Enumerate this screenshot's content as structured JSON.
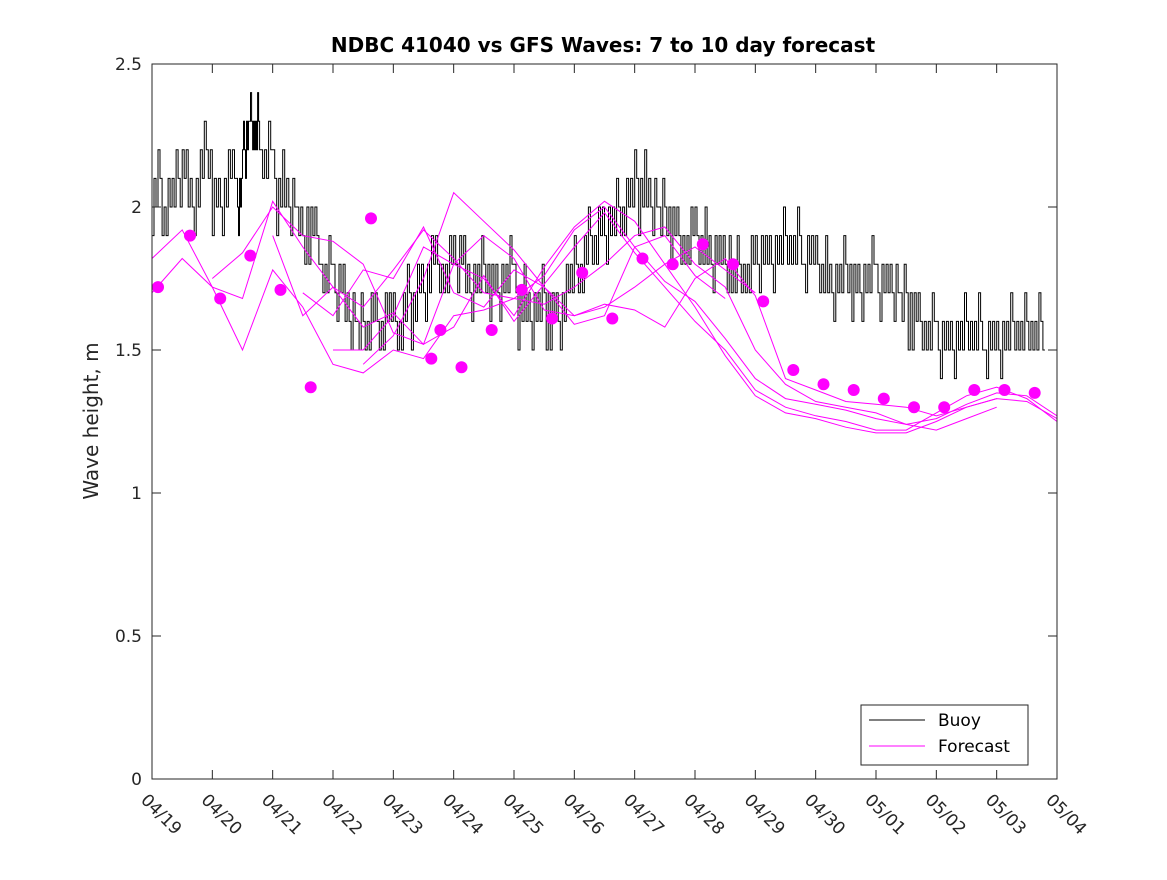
{
  "chart_data": {
    "type": "line",
    "title": "NDBC 41040 vs GFS Waves: 7 to 10 day forecast",
    "xlabel": "",
    "ylabel": "Wave height, m",
    "x_unit": "days",
    "xlim": [
      0,
      15
    ],
    "ylim": [
      0,
      2.5
    ],
    "x_ticks": [
      0,
      1,
      2,
      3,
      4,
      5,
      6,
      7,
      8,
      9,
      10,
      11,
      12,
      13,
      14,
      15
    ],
    "x_tick_labels": [
      "04/19",
      "04/20",
      "04/21",
      "04/22",
      "04/23",
      "04/24",
      "04/25",
      "04/26",
      "04/27",
      "04/28",
      "04/29",
      "04/30",
      "05/01",
      "05/02",
      "05/03",
      "05/04"
    ],
    "y_ticks": [
      0,
      0.5,
      1,
      1.5,
      2,
      2.5
    ],
    "y_tick_labels": [
      "0",
      "0.5",
      "1",
      "1.5",
      "2",
      "2.5"
    ],
    "grid": false,
    "legend": {
      "position": "bottom-right",
      "entries": [
        {
          "label": "Buoy",
          "color": "#000000"
        },
        {
          "label": "Forecast",
          "color": "#ff00ff"
        }
      ]
    },
    "colors": {
      "buoy": "#000000",
      "forecast": "#ff00ff"
    },
    "buoy": {
      "name": "Buoy",
      "x": [
        0.0,
        0.2,
        0.4,
        0.6,
        0.8,
        1.0,
        1.2,
        1.4,
        1.5,
        1.6,
        1.7,
        1.8,
        2.0,
        2.2,
        2.4,
        2.6,
        2.8,
        3.0,
        3.2,
        3.4,
        3.6,
        3.8,
        4.0,
        4.2,
        4.4,
        4.6,
        4.8,
        5.0,
        5.2,
        5.4,
        5.6,
        5.8,
        6.0,
        6.2,
        6.4,
        6.6,
        6.8,
        7.0,
        7.2,
        7.4,
        7.6,
        7.8,
        8.0,
        8.2,
        8.4,
        8.6,
        8.8,
        9.0,
        9.2,
        9.4,
        9.6,
        9.8,
        10.0,
        10.2,
        10.4,
        10.6,
        10.8,
        11.0,
        11.2,
        11.4,
        11.6,
        11.8,
        12.0,
        12.2,
        12.4,
        12.6,
        12.8,
        13.0,
        13.2,
        13.4,
        13.6,
        13.8,
        14.0,
        14.2,
        14.4,
        14.6
      ],
      "y": [
        2.05,
        2.0,
        2.1,
        2.0,
        2.15,
        2.0,
        2.1,
        2.0,
        2.2,
        2.3,
        2.25,
        2.15,
        2.05,
        2.0,
        1.9,
        1.9,
        1.75,
        1.7,
        1.6,
        1.55,
        1.6,
        1.6,
        1.55,
        1.65,
        1.7,
        1.8,
        1.75,
        1.8,
        1.7,
        1.75,
        1.7,
        1.75,
        1.65,
        1.6,
        1.65,
        1.6,
        1.7,
        1.75,
        1.85,
        1.9,
        1.95,
        2.0,
        2.05,
        2.0,
        1.95,
        1.9,
        1.85,
        1.85,
        1.8,
        1.8,
        1.75,
        1.75,
        1.8,
        1.8,
        1.85,
        1.85,
        1.8,
        1.75,
        1.7,
        1.75,
        1.7,
        1.75,
        1.7,
        1.7,
        1.65,
        1.6,
        1.55,
        1.5,
        1.5,
        1.55,
        1.55,
        1.5,
        1.5,
        1.55,
        1.55,
        1.55
      ]
    },
    "forecast_lines": [
      {
        "name": "Forecast",
        "x": [
          0.0,
          0.5,
          1.0,
          1.5,
          2.0,
          2.5,
          3.0,
          3.5,
          4.0,
          4.5,
          5.0,
          5.5,
          6.0,
          6.5,
          7.0,
          7.5,
          8.0,
          8.5,
          9.0,
          9.5,
          10.0,
          10.5,
          11.0,
          11.5,
          12.0,
          12.5,
          13.0,
          13.5,
          14.0,
          14.5,
          15.0
        ],
        "y": [
          1.7,
          1.82,
          1.72,
          1.5,
          1.78,
          1.65,
          1.45,
          1.42,
          1.5,
          1.47,
          1.62,
          1.64,
          1.68,
          1.76,
          1.92,
          2.0,
          1.86,
          1.74,
          1.67,
          1.54,
          1.4,
          1.33,
          1.31,
          1.29,
          1.26,
          1.24,
          1.26,
          1.31,
          1.35,
          1.34,
          1.27
        ]
      },
      {
        "name": "Forecast",
        "x": [
          0.0,
          0.5,
          1.0,
          1.5,
          2.0,
          2.5,
          3.0,
          3.5,
          4.0,
          4.5,
          5.0,
          5.5,
          6.0,
          6.5,
          7.0,
          7.5,
          8.0,
          8.5,
          9.0,
          9.5,
          10.0,
          10.5,
          11.0,
          11.5,
          12.0,
          12.5,
          13.0,
          13.5,
          14.0,
          14.5,
          15.0
        ],
        "y": [
          1.82,
          1.92,
          1.72,
          1.68,
          2.02,
          1.86,
          1.72,
          1.58,
          1.63,
          1.52,
          1.58,
          1.76,
          1.6,
          1.73,
          1.86,
          1.98,
          1.84,
          1.72,
          1.6,
          1.5,
          1.36,
          1.3,
          1.27,
          1.25,
          1.22,
          1.22,
          1.28,
          1.34,
          1.37,
          1.33,
          1.25
        ]
      },
      {
        "name": "Forecast",
        "x": [
          1.0,
          1.5,
          2.0,
          2.5,
          3.0,
          3.5,
          4.0,
          4.5,
          5.0,
          5.5,
          6.0,
          6.5,
          7.0,
          7.5,
          8.0,
          8.5,
          9.0,
          9.5,
          10.0,
          10.5,
          11.0,
          11.5,
          12.0,
          12.5,
          13.0,
          13.5,
          14.0,
          14.5,
          15.0
        ],
        "y": [
          1.75,
          1.84,
          2.0,
          1.9,
          1.88,
          1.8,
          1.56,
          1.52,
          1.8,
          1.75,
          1.62,
          1.79,
          1.93,
          2.02,
          1.95,
          1.8,
          1.65,
          1.48,
          1.34,
          1.28,
          1.26,
          1.23,
          1.21,
          1.21,
          1.25,
          1.3,
          1.33,
          1.32,
          1.26
        ]
      },
      {
        "name": "Forecast",
        "x": [
          2.0,
          2.5,
          3.0,
          3.5,
          4.0,
          4.5,
          5.0,
          5.5,
          6.0,
          6.5,
          7.0,
          7.5,
          8.0,
          8.5,
          9.0,
          9.5,
          10.0,
          10.5,
          11.0,
          11.5,
          12.0,
          12.5,
          13.0,
          13.5,
          14.0
        ],
        "y": [
          1.9,
          1.62,
          1.72,
          1.65,
          1.78,
          1.92,
          1.82,
          1.7,
          1.68,
          1.66,
          1.72,
          1.8,
          1.9,
          1.93,
          1.8,
          1.72,
          1.5,
          1.38,
          1.32,
          1.3,
          1.28,
          1.24,
          1.22,
          1.26,
          1.3
        ]
      },
      {
        "name": "Forecast",
        "x": [
          3.0,
          3.5,
          4.0,
          4.5,
          5.0,
          5.5,
          6.0,
          6.5,
          7.0,
          7.5,
          8.0,
          8.5,
          9.0,
          9.5,
          10.0,
          10.5,
          11.0,
          11.5,
          12.0,
          12.5,
          13.0,
          13.5,
          14.0
        ],
        "y": [
          1.5,
          1.5,
          1.62,
          1.86,
          1.8,
          1.9,
          1.82,
          1.64,
          1.62,
          1.66,
          1.64,
          1.58,
          1.75,
          1.82,
          1.69,
          1.4,
          1.36,
          1.32,
          1.31,
          1.3,
          1.27,
          1.3,
          1.33
        ]
      },
      {
        "name": "Forecast",
        "x": [
          3.5,
          4.0,
          4.5,
          5.0,
          5.5,
          6.0,
          6.5,
          7.0,
          7.5,
          8.0,
          8.5,
          9.0,
          9.5,
          10.0
        ],
        "y": [
          1.45,
          1.55,
          1.75,
          2.05,
          1.95,
          1.85,
          1.72,
          1.62,
          1.65,
          1.72,
          1.8,
          1.86,
          1.78,
          1.7
        ]
      },
      {
        "name": "Forecast",
        "x": [
          2.5,
          3.0,
          3.5,
          4.0,
          4.5,
          5.0,
          5.5,
          6.0,
          6.5,
          7.0,
          7.5,
          8.0,
          8.5,
          9.0,
          9.5
        ],
        "y": [
          1.7,
          1.62,
          1.78,
          1.75,
          1.93,
          1.7,
          1.65,
          1.78,
          1.72,
          1.59,
          1.62,
          1.86,
          1.9,
          1.76,
          1.68
        ]
      }
    ],
    "forecast_points": {
      "name": "Forecast",
      "x": [
        0.1,
        0.63,
        1.13,
        1.63,
        2.13,
        2.63,
        3.63,
        4.63,
        4.78,
        5.13,
        5.63,
        6.13,
        6.63,
        7.13,
        7.63,
        8.13,
        8.63,
        9.13,
        9.63,
        10.13,
        10.63,
        11.13,
        11.63,
        12.13,
        12.63,
        13.13,
        13.63,
        14.13,
        14.63
      ],
      "y": [
        1.72,
        1.9,
        1.68,
        1.83,
        1.71,
        1.37,
        1.96,
        1.47,
        1.57,
        1.44,
        1.57,
        1.71,
        1.61,
        1.77,
        1.61,
        1.82,
        1.8,
        1.87,
        1.8,
        1.67,
        1.43,
        1.38,
        1.36,
        1.33,
        1.3,
        1.3,
        1.36,
        1.36,
        1.35
      ]
    }
  }
}
